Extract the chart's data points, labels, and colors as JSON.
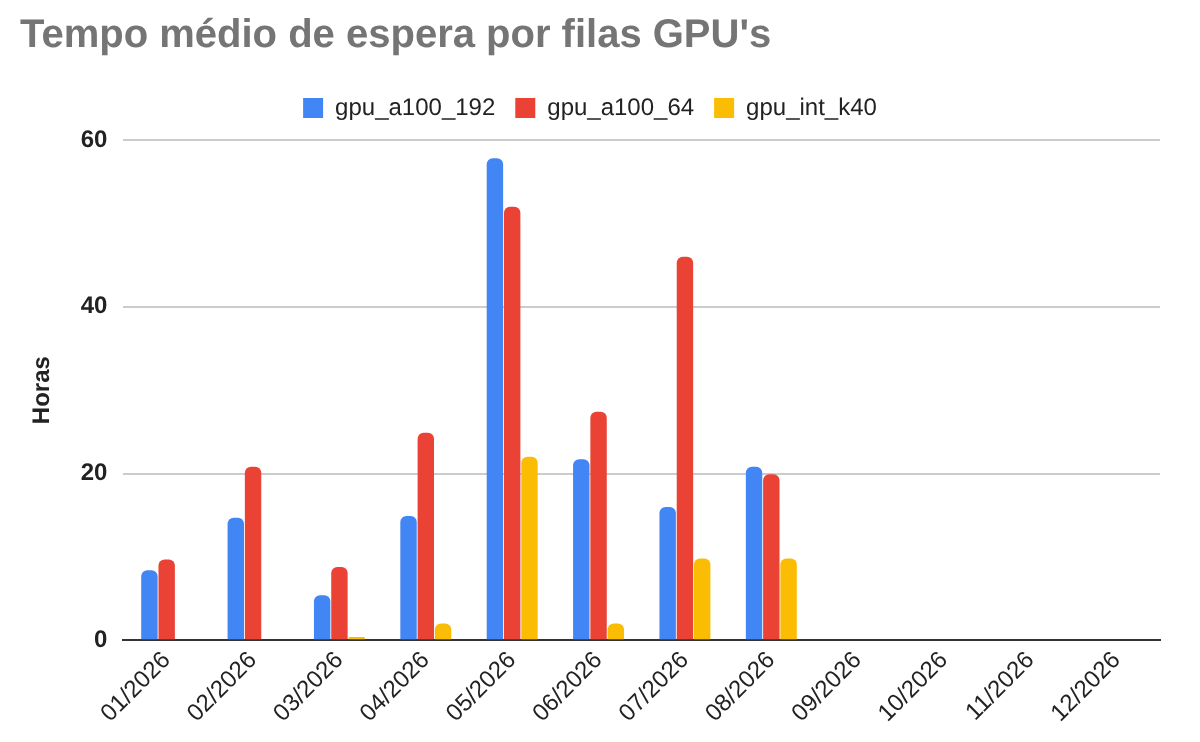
{
  "chart_data": {
    "type": "bar",
    "title": "Tempo médio de espera por filas GPU's",
    "ylabel": "Horas",
    "categories": [
      "01/2026",
      "02/2026",
      "03/2026",
      "04/2026",
      "05/2026",
      "06/2026",
      "07/2026",
      "08/2026",
      "09/2026",
      "10/2026",
      "11/2026",
      "12/2026"
    ],
    "series": [
      {
        "name": "gpu_a100_192",
        "color": "#4285f4",
        "values": [
          8.4,
          14.7,
          5.4,
          14.9,
          57.8,
          21.7,
          16,
          20.8,
          null,
          null,
          null,
          null
        ]
      },
      {
        "name": "gpu_a100_64",
        "color": "#ea4335",
        "values": [
          9.7,
          20.8,
          8.8,
          24.9,
          52,
          27.4,
          46,
          19.9,
          null,
          null,
          null,
          null
        ]
      },
      {
        "name": "gpu_int_k40",
        "color": "#fbbc04",
        "values": [
          null,
          null,
          0.4,
          2,
          22,
          2,
          9.8,
          9.8,
          null,
          null,
          null,
          null
        ]
      }
    ],
    "ylim": [
      0,
      60
    ],
    "yticks": [
      0,
      20,
      40,
      60
    ],
    "grid": "y",
    "legend": "top"
  }
}
